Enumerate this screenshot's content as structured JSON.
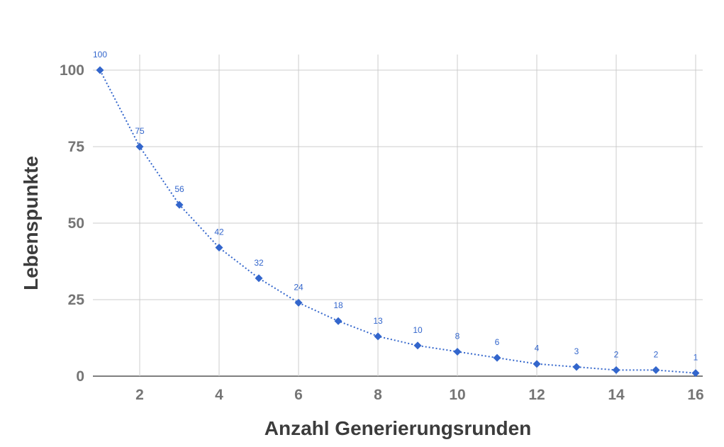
{
  "chart_data": {
    "type": "line",
    "title": "",
    "xlabel": "Anzahl Generierungsrunden",
    "ylabel": "Lebenspunkte",
    "x": [
      1,
      2,
      3,
      4,
      5,
      6,
      7,
      8,
      9,
      10,
      11,
      12,
      13,
      14,
      15,
      16
    ],
    "series": [
      {
        "values": [
          100,
          75,
          56,
          42,
          32,
          24,
          18,
          13,
          10,
          8,
          6,
          4,
          3,
          2,
          2,
          1
        ],
        "color": "#3366cc",
        "marker": "diamond",
        "line_style": "dotted"
      }
    ],
    "xlim": [
      1,
      16
    ],
    "ylim": [
      0,
      100
    ],
    "xticks": [
      "2",
      "4",
      "6",
      "8",
      "10",
      "12",
      "14",
      "16"
    ],
    "yticks": [
      "0",
      "25",
      "50",
      "75",
      "100"
    ],
    "data_labels": [
      "100",
      "75",
      "56",
      "42",
      "32",
      "24",
      "18",
      "13",
      "10",
      "8",
      "6",
      "4",
      "3",
      "2",
      "2",
      "1"
    ],
    "grid": true,
    "legend": "none"
  }
}
